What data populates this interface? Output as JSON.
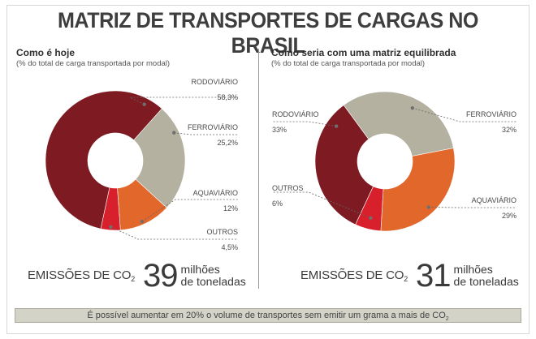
{
  "title": "MATRIZ DE TRANSPORTES DE CARGAS NO BRASIL",
  "left": {
    "title": "Como é hoje",
    "subtitle": "(% do total de carga transportada por modal)",
    "emissions": {
      "label": "EMISSÕES DE CO",
      "sub": "2",
      "value": "39",
      "unit1": "milhões",
      "unit2": "de toneladas"
    }
  },
  "right": {
    "title": "Como seria com uma matriz equilibrada",
    "subtitle": "(% do total de carga transportada por modal)",
    "emissions": {
      "label": "EMISSÕES DE CO",
      "sub": "2",
      "value": "31",
      "unit1": "milhões",
      "unit2": "de toneladas"
    }
  },
  "footer": {
    "text": "É possível aumentar em 20% o volume de transportes sem emitir  um grama a mais de CO",
    "sub": "2"
  },
  "colors": {
    "rodoviario": "#7d1a22",
    "ferroviario": "#b4b1a0",
    "aquaviario": "#e2672b",
    "outros": "#d8202c"
  },
  "chart_data": [
    {
      "type": "pie",
      "title": "Como é hoje",
      "subtitle": "(% do total de carga transportada por modal)",
      "slices": [
        {
          "label": "RODOVIÁRIO",
          "value": 58.3,
          "display": "58,3%",
          "color": "#7d1a22"
        },
        {
          "label": "FERROVIÁRIO",
          "value": 25.2,
          "display": "25,2%",
          "color": "#b4b1a0"
        },
        {
          "label": "AQUAVIÁRIO",
          "value": 12,
          "display": "12%",
          "color": "#e2672b"
        },
        {
          "label": "OUTROS",
          "value": 4.5,
          "display": "4,5%",
          "color": "#d8202c"
        }
      ]
    },
    {
      "type": "pie",
      "title": "Como seria com uma matriz equilibrada",
      "subtitle": "(% do total de carga transportada por modal)",
      "slices": [
        {
          "label": "RODOVIÁRIO",
          "value": 33,
          "display": "33%",
          "color": "#7d1a22"
        },
        {
          "label": "FERROVIÁRIO",
          "value": 32,
          "display": "32%",
          "color": "#b4b1a0"
        },
        {
          "label": "AQUAVIÁRIO",
          "value": 29,
          "display": "29%",
          "color": "#e2672b"
        },
        {
          "label": "OUTROS",
          "value": 6,
          "display": "6%",
          "color": "#d8202c"
        }
      ]
    }
  ]
}
